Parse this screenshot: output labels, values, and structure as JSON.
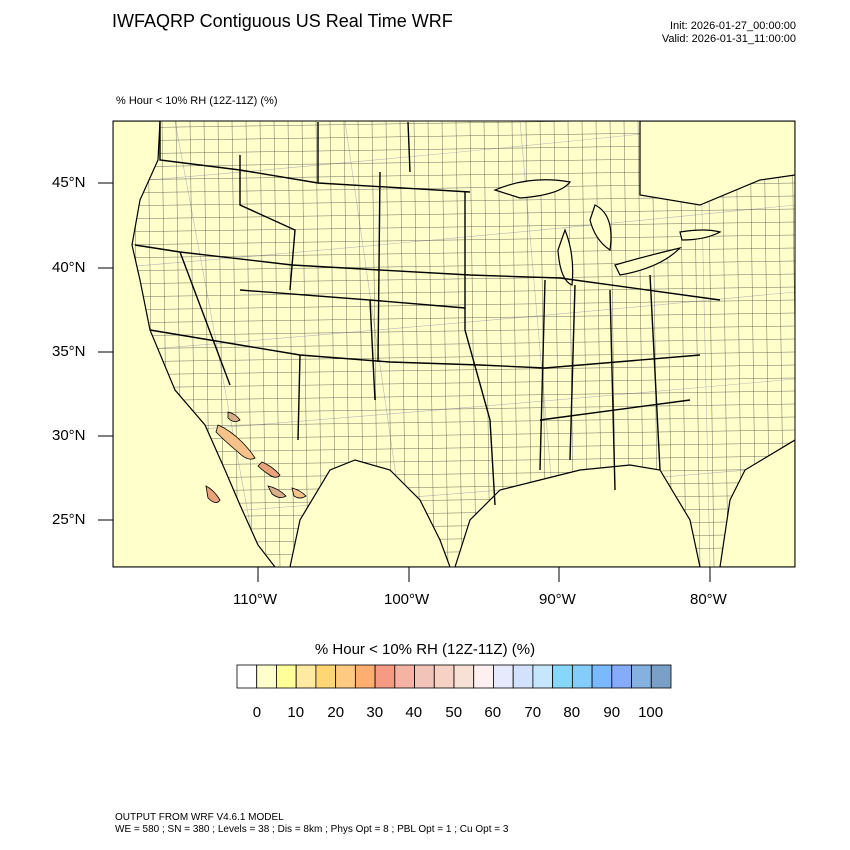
{
  "header": {
    "title": "IWFAQRP Contiguous US Real Time WRF",
    "init": "Init: 2026-01-27_00:00:00",
    "valid": "Valid: 2026-01-31_11:00:00",
    "subtitle": "% Hour < 10% RH (12Z-11Z)   (%)"
  },
  "map": {
    "background_color": "#ffffcc",
    "lat_labels": [
      "45°N",
      "40°N",
      "35°N",
      "30°N",
      "25°N"
    ],
    "lon_labels": [
      "110°W",
      "100°W",
      "90°W",
      "80°W"
    ],
    "highlight_colors": [
      "#f5c38a",
      "#e8a37a",
      "#d7b08b"
    ]
  },
  "colorbar": {
    "title": "% Hour < 10% RH (12Z-11Z)  (%)",
    "colors": [
      "#ffffff",
      "#ffffcc",
      "#ffff99",
      "#ffeaa2",
      "#ffd673",
      "#fec980",
      "#feae70",
      "#f59b84",
      "#f5b3a3",
      "#f2c3b8",
      "#f5d2c5",
      "#f7e1d6",
      "#fef0ef",
      "#e7eafd",
      "#d2e2fc",
      "#c5e6fc",
      "#86d8fb",
      "#84ccfa",
      "#7ab9fb",
      "#86acf9",
      "#85b0e0",
      "#7aa0c8"
    ],
    "tick_labels": [
      "0",
      "10",
      "20",
      "30",
      "40",
      "50",
      "60",
      "70",
      "80",
      "90",
      "100"
    ]
  },
  "footer": {
    "line1": "OUTPUT FROM WRF V4.6.1 MODEL",
    "line2": "WE = 580 ; SN = 380 ; Levels = 38 ; Dis = 8km ; Phys Opt = 8 ; PBL Opt = 1 ; Cu Opt = 3"
  }
}
